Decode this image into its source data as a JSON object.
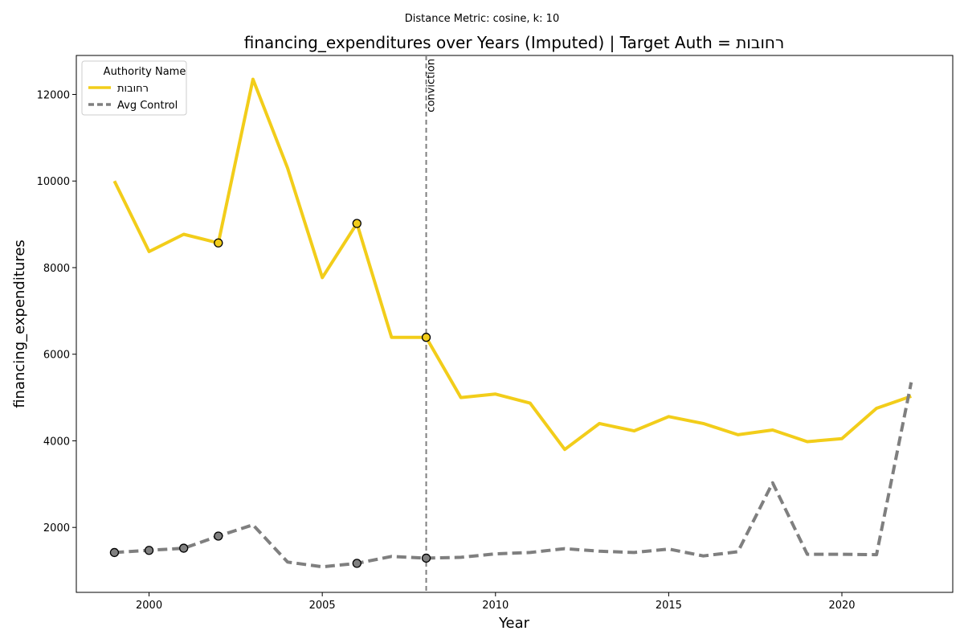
{
  "chart_data": {
    "type": "line",
    "suptitle": "Distance Metric: cosine, k: 10",
    "title": "financing_expenditures over Years (Imputed) | Target Auth = רחובות",
    "xlabel": "Year",
    "ylabel": "financing_expenditures",
    "xlim": [
      1997.9,
      2023.2
    ],
    "ylim": [
      500,
      12900
    ],
    "xticks": [
      2000,
      2005,
      2010,
      2015,
      2020
    ],
    "yticks": [
      2000,
      4000,
      6000,
      8000,
      10000,
      12000
    ],
    "x": [
      1999,
      2000,
      2001,
      2002,
      2003,
      2004,
      2005,
      2006,
      2007,
      2008,
      2009,
      2010,
      2011,
      2012,
      2013,
      2014,
      2015,
      2016,
      2017,
      2018,
      2019,
      2020,
      2021,
      2022
    ],
    "series": [
      {
        "name": "רחובות",
        "color": "#f2cd1a",
        "style": "solid",
        "values": [
          10000,
          8370,
          8770,
          8570,
          12350,
          10300,
          7770,
          9020,
          6390,
          6390,
          5000,
          5080,
          4870,
          3800,
          4400,
          4230,
          4560,
          4400,
          4140,
          4250,
          3980,
          4050,
          4750,
          5030
        ],
        "imputed_years": [
          2002,
          2006,
          2008
        ],
        "marker_color": "#f2cd1a"
      },
      {
        "name": "Avg Control",
        "color": "#7f7f7f",
        "style": "dashed",
        "values": [
          1420,
          1470,
          1520,
          1800,
          2060,
          1200,
          1090,
          1170,
          1330,
          1290,
          1310,
          1390,
          1420,
          1510,
          1450,
          1420,
          1500,
          1340,
          1440,
          3030,
          1380,
          1380,
          1370,
          5350
        ],
        "imputed_years": [
          1999,
          2000,
          2001,
          2002,
          2006,
          2008
        ],
        "marker_color": "#808080"
      }
    ],
    "vline": {
      "x": 2008,
      "label": "conviction",
      "color": "#7f7f7f"
    },
    "legend": {
      "title": "Authority Name",
      "placement": "top-left"
    },
    "grid": false
  }
}
